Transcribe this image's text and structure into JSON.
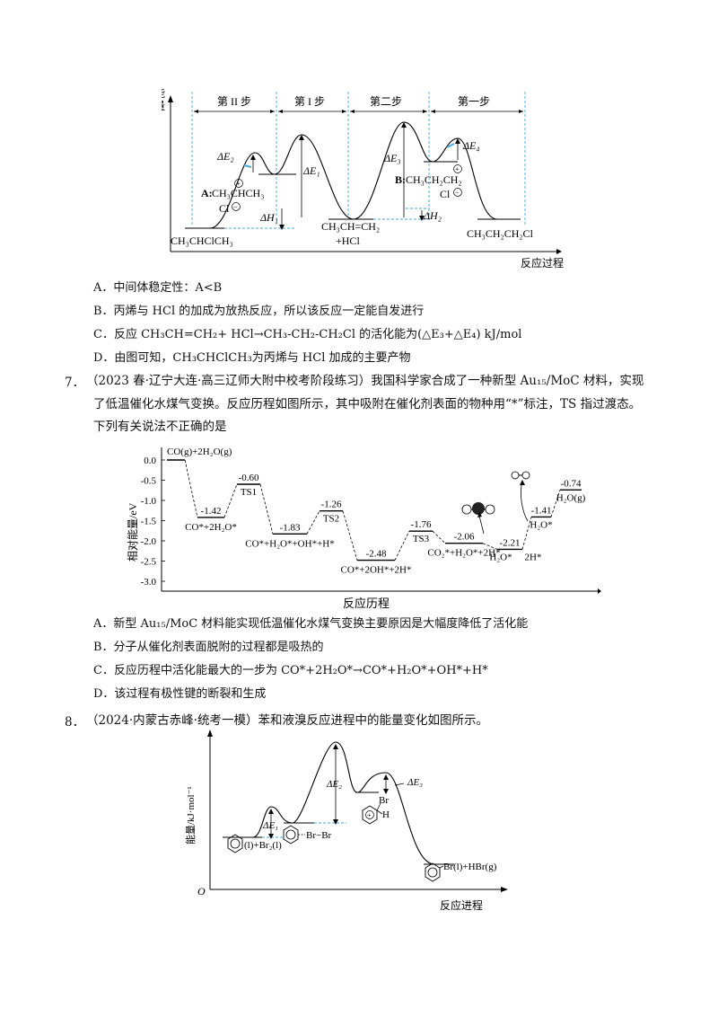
{
  "fig1": {
    "y_label": "能量",
    "x_label": "反应过程",
    "steps": [
      "第 II 步",
      "第 I 步",
      "第二步",
      "第一步"
    ],
    "dE2": "ΔE₂",
    "dE1": "ΔE₁",
    "dE3": "ΔE₃",
    "dE4": "ΔE₄",
    "dH1": "ΔH₁",
    "dH2": "ΔH₂",
    "label_A": "A:",
    "a_formula": "CH₃CHCH₃",
    "a_cl": "Cl",
    "label_B": "B:",
    "b_formula": "CH₃CH₂CH₂",
    "b_cl": "Cl",
    "left_product": "CH₃CHClCH₃",
    "mid_1": "CH₃CH=CH₂",
    "mid_2": "+HCl",
    "right_product": "CH₃CH₂CH₂Cl",
    "plus": "+",
    "minus": "−"
  },
  "q6_options": [
    "A．中间体稳定性：A<B",
    "B．丙烯与 HCl 的加成为放热反应，所以该反应一定能自发进行",
    "C．反应 CH₃CH=CH₂+ HCl→CH₃-CH₂-CH₂Cl 的活化能为(△E₃+△E₄) kJ/mol",
    "D．由图可知，CH₃CHClCH₃为丙烯与 HCl 加成的主要产物"
  ],
  "q7": {
    "number": "7．",
    "line1": "（2023 春·辽宁大连·高三辽师大附中校考阶段练习）我国科学家合成了一种新型 Au₁₅/MoC 材料，实现",
    "line2": "了低温催化水煤气变换。反应历程如图所示，其中吸附在催化剂表面的物种用“*”标注，TS 指过渡态。",
    "line3": "下列有关说法不正确的是",
    "options": [
      "A．新型 Au₁₅/MoC 材料能实现低温催化水煤气变换主要原因是大幅度降低了活化能",
      "B．分子从催化剂表面脱附的过程都是吸热的",
      "C．反应历程中活化能最大的一步为 CO*+2H₂O*→CO*+H₂O*+OH*+H*",
      "D．该过程有极性键的断裂和生成"
    ]
  },
  "fig2": {
    "y_label": "相对能量/eV",
    "x_label": "反应历程",
    "yticks": [
      "0.0",
      "-0.5",
      "-1.0",
      "-1.5",
      "-2.0",
      "-2.5",
      "-3.0"
    ],
    "levels": [
      {
        "value": "0.00",
        "label": "CO(g)+2H₂O(g)",
        "state": ""
      },
      {
        "value": "-1.42",
        "label": "CO*+2H₂O*",
        "state": ""
      },
      {
        "value": "-0.60",
        "label": "",
        "state": "TS1"
      },
      {
        "value": "-1.83",
        "label": "CO*+H₂O*+OH*+H*",
        "state": ""
      },
      {
        "value": "-1.26",
        "label": "",
        "state": "TS2"
      },
      {
        "value": "-2.48",
        "label": "CO*+2OH*+2H*",
        "state": ""
      },
      {
        "value": "-1.76",
        "label": "",
        "state": "TS3"
      },
      {
        "value": "-2.06",
        "label": "CO₂*+H₂O*+2H*",
        "state": ""
      },
      {
        "value": "-2.21",
        "label": "H₂O*",
        "state": "2H*"
      },
      {
        "value": "-1.41",
        "label": "H₂O*",
        "state": ""
      },
      {
        "value": "-0.74",
        "label": "H₂O(g)",
        "state": ""
      }
    ]
  },
  "q8": {
    "number": "8．",
    "line1": "（2024·内蒙古赤峰·统考一模）苯和液溴反应进程中的能量变化如图所示。"
  },
  "fig3": {
    "y_label": "能量/kJ·mol⁻¹",
    "x_label": "反应进程",
    "origin": "O",
    "dE1": "ΔE₁",
    "dE2": "ΔE₂",
    "dE3": "ΔE₃",
    "reactant": "(l)+Br₂(l)",
    "complex": "Br−Br",
    "inter_br": "Br",
    "inter_h": "H",
    "product": "Br(l)+HBr(g)",
    "plus": "+"
  }
}
